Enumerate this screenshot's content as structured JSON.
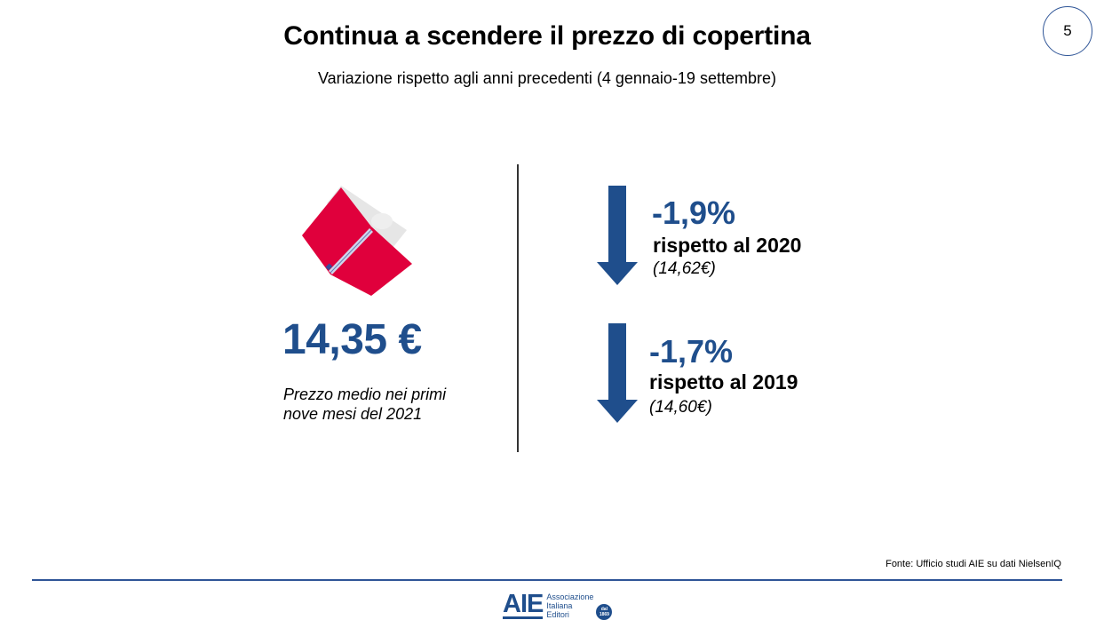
{
  "page_number": "5",
  "title": "Continua a scendere il prezzo di copertina",
  "subtitle": "Variazione rispetto agli anni precedenti (4 gennaio-19 settembre)",
  "left": {
    "icon": "open-book-icon",
    "price": "14,35 €",
    "caption_line1": "Prezzo medio nei primi",
    "caption_line2": "nove mesi del 2021"
  },
  "comparisons": [
    {
      "icon": "arrow-down-icon",
      "delta": "-1,9%",
      "label": "rispetto al 2020",
      "previous": "(14,62€)"
    },
    {
      "icon": "arrow-down-icon",
      "delta": "-1,7%",
      "label": "rispetto al 2019",
      "previous": "(14,60€)"
    }
  ],
  "source": "Fonte: Ufficio studi AIE su dati NielsenIQ",
  "logo": {
    "mark": "AIE",
    "line1": "Associazione",
    "line2": "Italiana",
    "line3": "Editori",
    "badge_line1": "dal",
    "badge_line2": "1869"
  },
  "colors": {
    "accent_blue": "#1f4e8c",
    "book_red": "#e0003c",
    "line_blue": "#2f5597"
  }
}
